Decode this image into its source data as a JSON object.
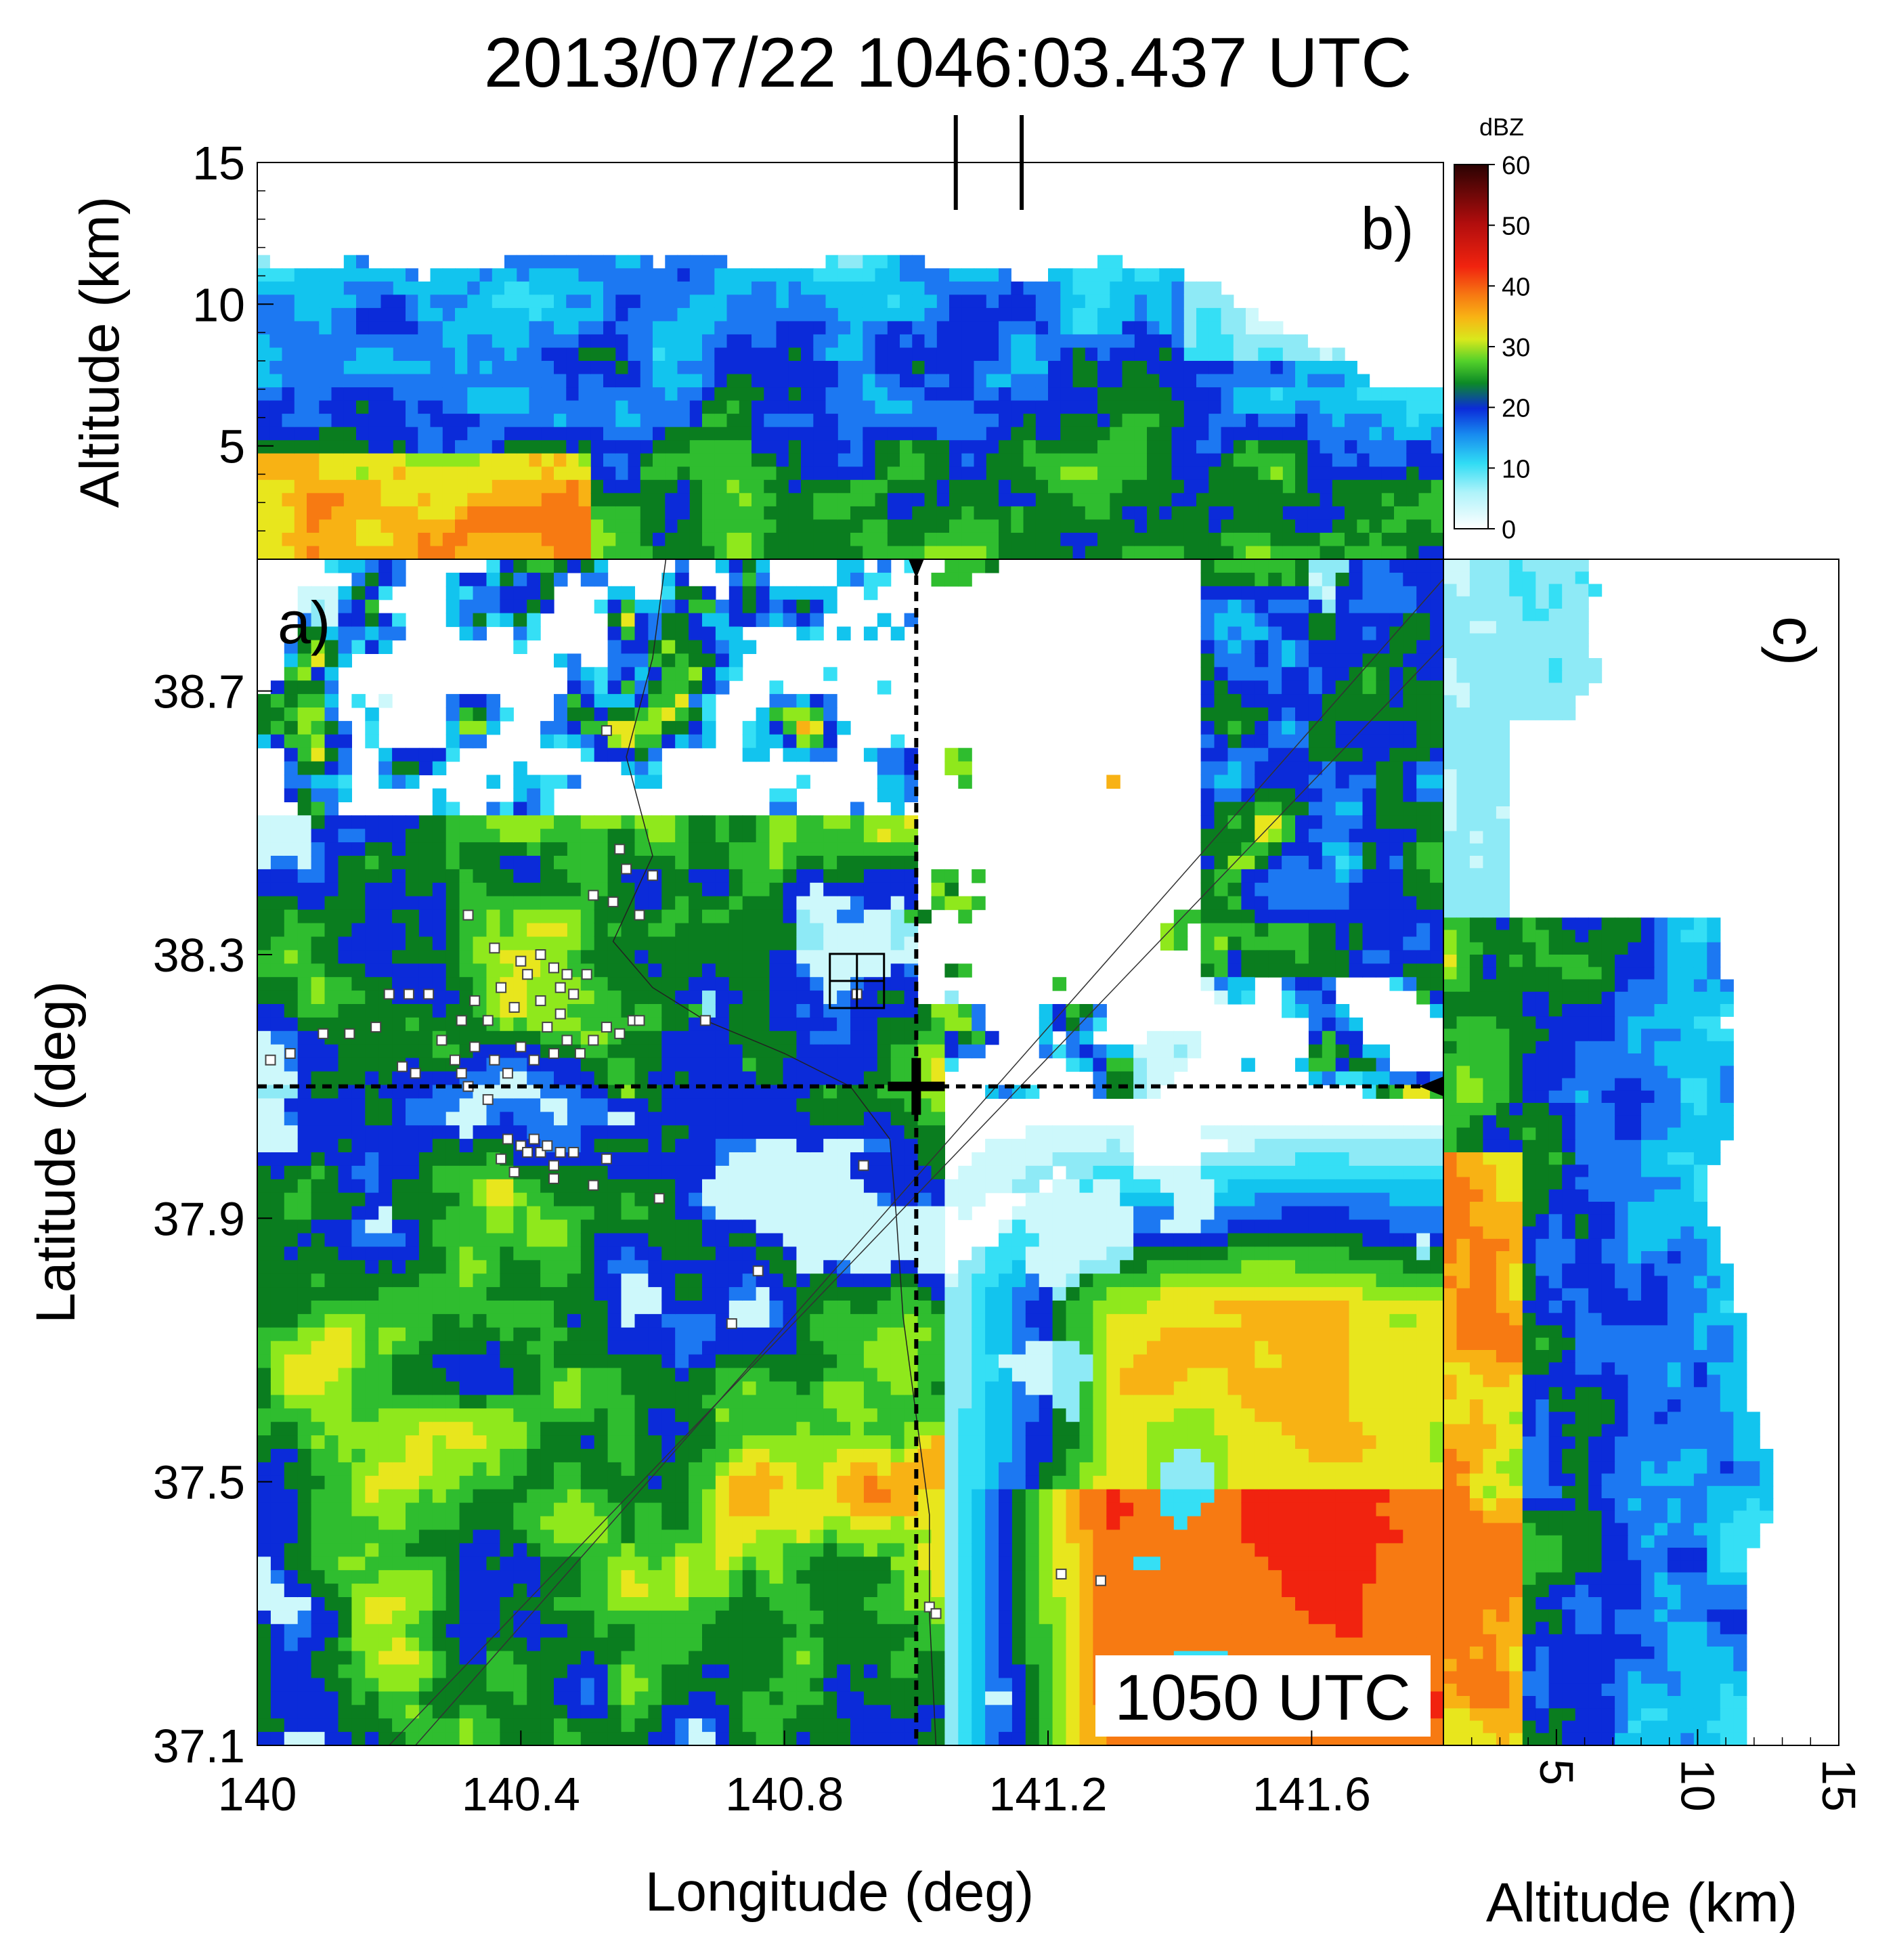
{
  "title": "2013/07/22 1046:03.437 UTC",
  "chart_data": [
    {
      "panel": "a)",
      "type": "heatmap",
      "xlabel": "Longitude (deg)",
      "ylabel": "Latitude (deg)",
      "x_ticks": [
        "140",
        "140.4",
        "140.8",
        "141.2",
        "141.6"
      ],
      "y_ticks": [
        "38.7",
        "38.3",
        "37.9",
        "37.5",
        "37.1"
      ],
      "xlim": [
        140.0,
        141.8
      ],
      "ylim": [
        37.1,
        38.9
      ],
      "time_label": "1050 UTC",
      "cross_section": {
        "lon": 141.0,
        "lat": 38.1
      },
      "box_center": {
        "lon": 140.91,
        "lat": 38.26
      },
      "thin_lines": [
        {
          "from": [
            140.2,
            37.1
          ],
          "to": [
            141.8,
            38.77
          ]
        },
        {
          "from": [
            140.24,
            37.1
          ],
          "to": [
            141.8,
            38.87
          ]
        }
      ],
      "lightning_sources": [
        [
          140.02,
          38.14
        ],
        [
          140.05,
          38.15
        ],
        [
          140.1,
          38.18
        ],
        [
          140.14,
          38.18
        ],
        [
          140.18,
          38.19
        ],
        [
          140.2,
          38.24
        ],
        [
          140.23,
          38.24
        ],
        [
          140.26,
          38.24
        ],
        [
          140.22,
          38.13
        ],
        [
          140.24,
          38.12
        ],
        [
          140.28,
          38.17
        ],
        [
          140.31,
          38.2
        ],
        [
          140.33,
          38.23
        ],
        [
          140.35,
          38.2
        ],
        [
          140.37,
          38.25
        ],
        [
          140.39,
          38.22
        ],
        [
          140.41,
          38.27
        ],
        [
          140.43,
          38.23
        ],
        [
          140.44,
          38.19
        ],
        [
          140.46,
          38.21
        ],
        [
          140.48,
          38.24
        ],
        [
          140.3,
          38.14
        ],
        [
          140.33,
          38.16
        ],
        [
          140.36,
          38.14
        ],
        [
          140.38,
          38.12
        ],
        [
          140.4,
          38.16
        ],
        [
          140.42,
          38.14
        ],
        [
          140.45,
          38.15
        ],
        [
          140.47,
          38.17
        ],
        [
          140.49,
          38.15
        ],
        [
          140.51,
          38.17
        ],
        [
          140.53,
          38.19
        ],
        [
          140.55,
          38.18
        ],
        [
          140.57,
          38.2
        ],
        [
          140.32,
          38.1
        ],
        [
          140.35,
          38.08
        ],
        [
          140.31,
          38.12
        ],
        [
          140.4,
          38.01
        ],
        [
          140.41,
          38.0
        ],
        [
          140.42,
          38.02
        ],
        [
          140.43,
          38.0
        ],
        [
          140.44,
          38.01
        ],
        [
          140.45,
          37.98
        ],
        [
          140.46,
          38.0
        ],
        [
          140.39,
          37.97
        ],
        [
          140.38,
          38.02
        ],
        [
          140.37,
          37.99
        ],
        [
          140.45,
          37.96
        ],
        [
          140.48,
          38.0
        ],
        [
          140.32,
          38.36
        ],
        [
          140.36,
          38.31
        ],
        [
          140.4,
          38.29
        ],
        [
          140.43,
          38.3
        ],
        [
          140.45,
          38.28
        ],
        [
          140.47,
          38.27
        ],
        [
          140.46,
          38.25
        ],
        [
          140.5,
          38.27
        ],
        [
          140.51,
          38.39
        ],
        [
          140.55,
          38.46
        ],
        [
          140.56,
          38.43
        ],
        [
          140.58,
          38.36
        ],
        [
          140.6,
          38.42
        ],
        [
          140.54,
          38.38
        ],
        [
          140.53,
          38.64
        ],
        [
          140.58,
          38.2
        ],
        [
          140.51,
          37.95
        ],
        [
          140.53,
          37.99
        ],
        [
          140.61,
          37.93
        ],
        [
          140.68,
          38.2
        ],
        [
          140.76,
          37.82
        ],
        [
          140.72,
          37.74
        ],
        [
          140.92,
          37.98
        ],
        [
          140.91,
          38.24
        ],
        [
          141.02,
          37.31
        ],
        [
          141.03,
          37.3
        ],
        [
          141.22,
          37.36
        ],
        [
          141.28,
          37.35
        ]
      ],
      "colorbar": {
        "unit": "dBZ",
        "ticks": [
          "60",
          "50",
          "40",
          "30",
          "20",
          "10",
          "0"
        ],
        "range": [
          0,
          60
        ]
      }
    },
    {
      "panel": "b)",
      "type": "heatmap",
      "ylabel": "Altitude (km)",
      "y_ticks": [
        "15",
        "10",
        "5"
      ],
      "ylim": [
        1,
        15
      ],
      "xlim": [
        140.0,
        141.8
      ],
      "top_markers_lon": [
        141.06,
        141.16
      ]
    },
    {
      "panel": "c)",
      "type": "heatmap",
      "xlabel": "Altitude (km)",
      "x_ticks": [
        "5",
        "10",
        "15"
      ],
      "xlim": [
        1,
        15
      ],
      "ylim": [
        37.1,
        38.9
      ]
    }
  ],
  "colors": {
    "scale": [
      "#ffffff",
      "#cdf8fb",
      "#8eeaf6",
      "#35dff5",
      "#12c4ee",
      "#1c78f2",
      "#0b2bd9",
      "#0a7d1f",
      "#2fbd2f",
      "#8fe81c",
      "#e8e61d",
      "#f8b214",
      "#f77a12",
      "#f1230f",
      "#c81111",
      "#8e0b0b",
      "#3a0303"
    ]
  }
}
